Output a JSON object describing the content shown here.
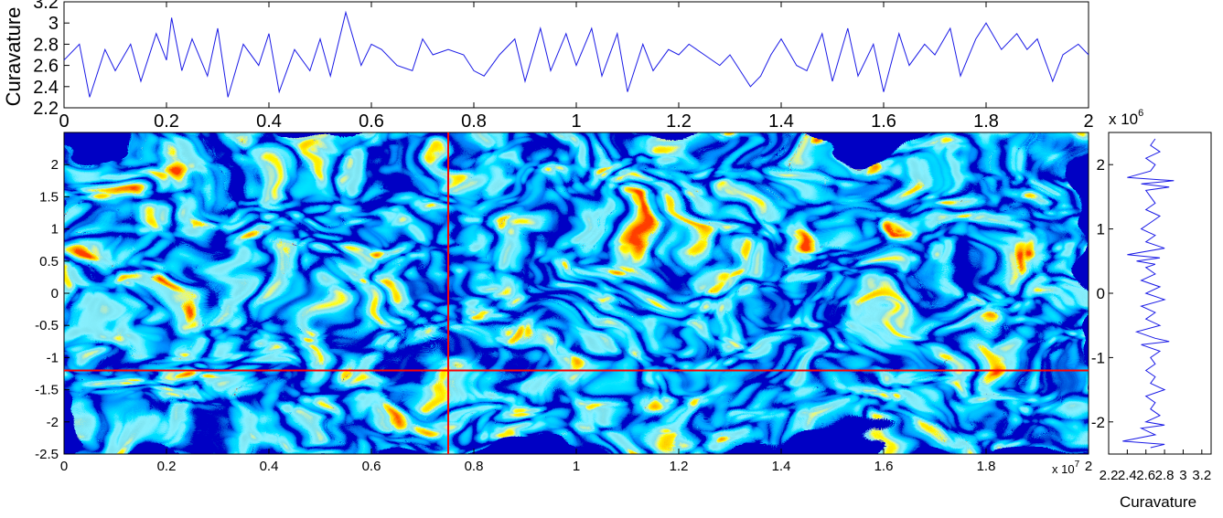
{
  "colors": {
    "series_line": "#1a1ae6",
    "crosshair": "#ff0000",
    "field_colormap": [
      "#00008f",
      "#0040ff",
      "#00bfff",
      "#40e0d0",
      "#ffff00",
      "#ff8000",
      "#ff0000"
    ]
  },
  "chart_data": [
    {
      "id": "top-curvature",
      "type": "line",
      "ylabel": "Curavature",
      "xlim": [
        0,
        2
      ],
      "ylim": [
        2.2,
        3.2
      ],
      "x_ticks": [
        "0",
        "0.2",
        "0.4",
        "0.6",
        "0.8",
        "1",
        "1.2",
        "1.4",
        "1.6",
        "1.8",
        "2"
      ],
      "y_ticks": [
        "2.2",
        "2.4",
        "2.6",
        "2.8",
        "3",
        "3.2"
      ],
      "x_exponent": "x 10",
      "x_exponent_power": "6",
      "series": [
        {
          "x": [
            0,
            0.03,
            0.05,
            0.08,
            0.1,
            0.13,
            0.15,
            0.18,
            0.2,
            0.21,
            0.23,
            0.25,
            0.28,
            0.3,
            0.32,
            0.35,
            0.38,
            0.4,
            0.42,
            0.45,
            0.48,
            0.5,
            0.52,
            0.55,
            0.58,
            0.6,
            0.62,
            0.65,
            0.68,
            0.7,
            0.72,
            0.75,
            0.78,
            0.8,
            0.82,
            0.85,
            0.88,
            0.9,
            0.93,
            0.95,
            0.98,
            1.0,
            1.03,
            1.05,
            1.08,
            1.1,
            1.13,
            1.15,
            1.18,
            1.2,
            1.22,
            1.25,
            1.28,
            1.3,
            1.32,
            1.34,
            1.36,
            1.38,
            1.4,
            1.43,
            1.45,
            1.48,
            1.5,
            1.53,
            1.55,
            1.58,
            1.6,
            1.63,
            1.65,
            1.68,
            1.7,
            1.73,
            1.75,
            1.78,
            1.8,
            1.83,
            1.86,
            1.88,
            1.9,
            1.93,
            1.95,
            1.98,
            2.0
          ],
          "y": [
            2.65,
            2.8,
            2.3,
            2.75,
            2.55,
            2.8,
            2.45,
            2.9,
            2.65,
            3.05,
            2.55,
            2.85,
            2.5,
            2.95,
            2.3,
            2.8,
            2.6,
            2.9,
            2.35,
            2.75,
            2.55,
            2.85,
            2.5,
            3.1,
            2.6,
            2.8,
            2.75,
            2.6,
            2.55,
            2.85,
            2.7,
            2.75,
            2.7,
            2.55,
            2.5,
            2.7,
            2.85,
            2.45,
            2.95,
            2.55,
            2.9,
            2.6,
            2.95,
            2.5,
            2.9,
            2.35,
            2.8,
            2.55,
            2.75,
            2.7,
            2.8,
            2.7,
            2.6,
            2.7,
            2.55,
            2.4,
            2.5,
            2.7,
            2.85,
            2.6,
            2.55,
            2.9,
            2.45,
            2.95,
            2.5,
            2.8,
            2.35,
            2.9,
            2.6,
            2.8,
            2.7,
            2.95,
            2.5,
            2.85,
            3.0,
            2.75,
            2.9,
            2.75,
            2.85,
            2.45,
            2.7,
            2.8,
            2.7
          ]
        }
      ]
    },
    {
      "id": "main-field",
      "type": "heatmap",
      "xlim": [
        0,
        2
      ],
      "ylim": [
        -2.5,
        2.5
      ],
      "x_ticks": [
        "0",
        "0.2",
        "0.4",
        "0.6",
        "0.8",
        "1",
        "1.2",
        "1.4",
        "1.6",
        "1.8",
        "2"
      ],
      "y_ticks": [
        "2",
        "1.5",
        "1",
        "0.5",
        "0",
        "-0.5",
        "-1",
        "-1.5",
        "-2",
        "-2.5"
      ],
      "x_exponent": "x 10",
      "x_exponent_power": "7",
      "crosshair": {
        "x": 0.75,
        "y": -1.2
      }
    },
    {
      "id": "right-curvature",
      "type": "line",
      "xlabel": "Curavature",
      "xlim": [
        2.2,
        3.3
      ],
      "ylim": [
        -2.5,
        2.5
      ],
      "x_ticks": [
        "2.2",
        "2.4",
        "2.6",
        "2.8",
        "3",
        "3.2"
      ],
      "y_ticks": [
        "2",
        "1",
        "0",
        "-1",
        "-2"
      ],
      "series": [
        {
          "y": [
            2.4,
            2.3,
            2.2,
            2.1,
            2.0,
            1.9,
            1.8,
            1.75,
            1.7,
            1.65,
            1.6,
            1.5,
            1.4,
            1.3,
            1.2,
            1.1,
            1.0,
            0.9,
            0.8,
            0.7,
            0.6,
            0.55,
            0.5,
            0.45,
            0.4,
            0.3,
            0.2,
            0.1,
            0.0,
            -0.1,
            -0.2,
            -0.3,
            -0.4,
            -0.5,
            -0.6,
            -0.7,
            -0.75,
            -0.8,
            -0.9,
            -1.0,
            -1.1,
            -1.2,
            -1.3,
            -1.4,
            -1.5,
            -1.6,
            -1.7,
            -1.8,
            -1.9,
            -2.0,
            -2.05,
            -2.1,
            -2.2,
            -2.3,
            -2.35,
            -2.4
          ],
          "x": [
            2.7,
            2.65,
            2.75,
            2.6,
            2.7,
            2.65,
            2.4,
            2.9,
            2.55,
            2.85,
            2.6,
            2.65,
            2.7,
            2.6,
            2.75,
            2.65,
            2.55,
            2.7,
            2.6,
            2.8,
            2.4,
            2.75,
            2.5,
            2.7,
            2.6,
            2.7,
            2.55,
            2.75,
            2.6,
            2.8,
            2.55,
            2.7,
            2.6,
            2.75,
            2.5,
            2.7,
            2.85,
            2.55,
            2.75,
            2.65,
            2.7,
            2.6,
            2.7,
            2.65,
            2.8,
            2.6,
            2.7,
            2.65,
            2.75,
            2.6,
            2.8,
            2.55,
            2.7,
            2.35,
            2.8,
            2.65
          ]
        }
      ]
    }
  ]
}
